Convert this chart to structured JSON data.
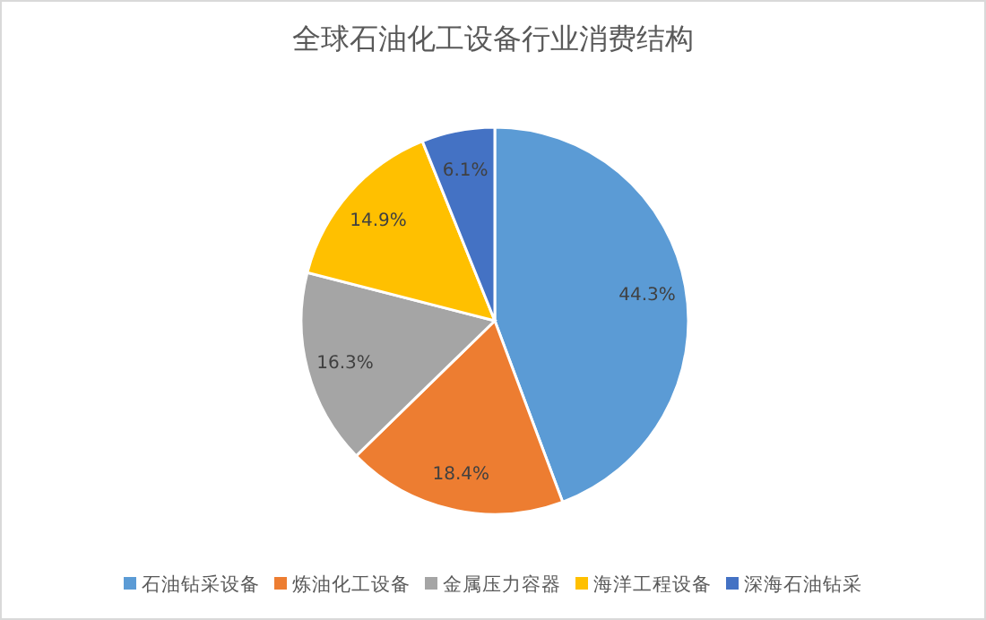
{
  "chart_data": {
    "type": "pie",
    "title": "全球石油化工设备行业消费结构",
    "categories": [
      "石油钻采设备",
      "炼油化工设备",
      "金属压力容器",
      "海洋工程设备",
      "深海石油钻采"
    ],
    "values": [
      44.3,
      18.4,
      16.3,
      14.9,
      6.1
    ],
    "value_labels": [
      "44.3%",
      "18.4%",
      "16.3%",
      "14.9%",
      "6.1%"
    ],
    "colors": [
      "#5b9bd5",
      "#ed7d31",
      "#a5a5a5",
      "#ffc000",
      "#4472c4"
    ],
    "legend": "bottom"
  }
}
